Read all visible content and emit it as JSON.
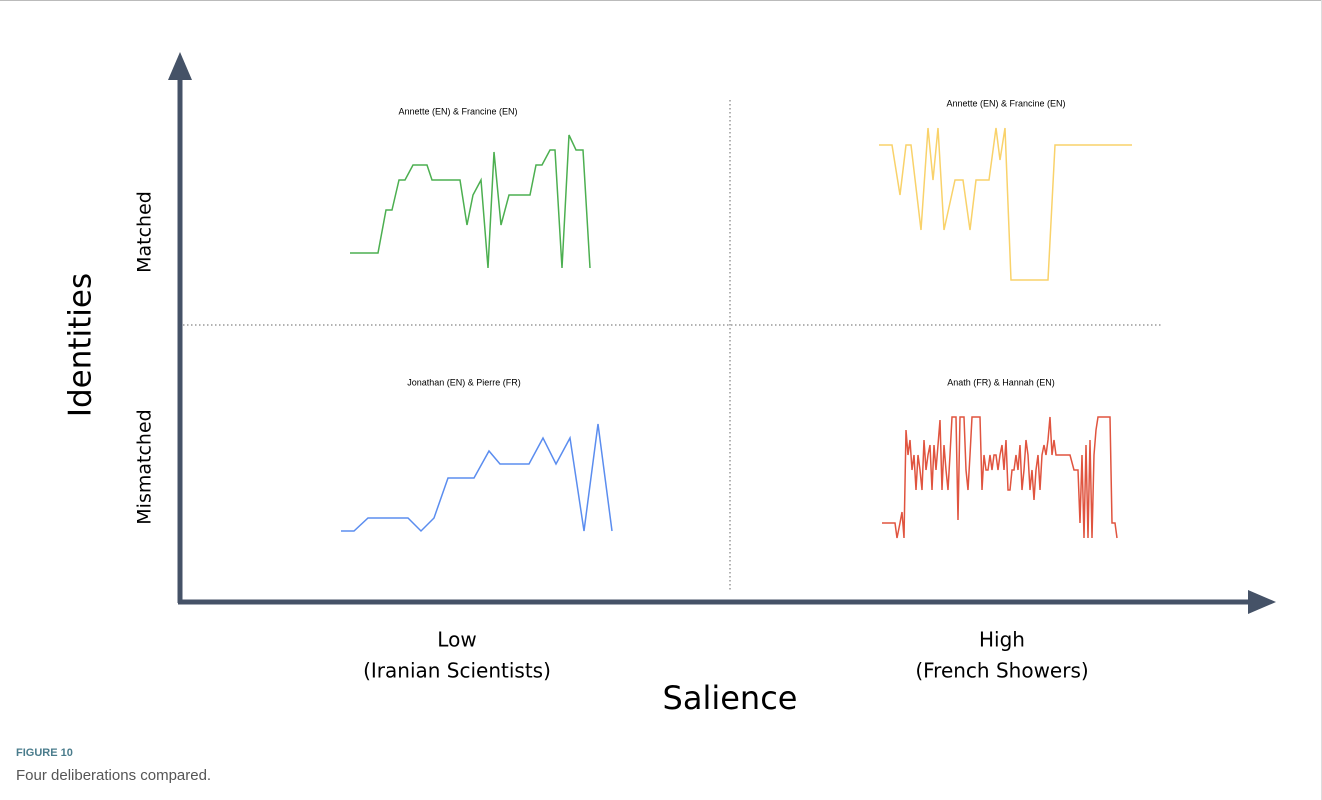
{
  "figure": {
    "label": "FIGURE 10",
    "caption": "Four deliberations compared."
  },
  "axes": {
    "y_title": "Identities",
    "x_title": "Salience",
    "y_categories": [
      "Matched",
      "Mismatched"
    ],
    "x_categories": [
      [
        "Low",
        "(Iranian Scientists)"
      ],
      [
        "High",
        "(French Showers)"
      ]
    ]
  },
  "chart_data": [
    {
      "type": "line",
      "title": "Annette (EN) & Francine (EN)",
      "color": "#4caf50",
      "xlim": [
        0,
        240
      ],
      "ylim": [
        0,
        133
      ],
      "x": [
        0,
        28,
        36,
        42,
        49,
        55,
        63,
        77,
        82,
        110,
        117,
        123,
        131,
        138,
        144,
        151,
        159,
        180,
        186,
        192,
        200,
        205,
        212,
        219,
        226,
        233,
        240
      ],
      "values": [
        15,
        15,
        58,
        58,
        88,
        88,
        103,
        103,
        88,
        88,
        43,
        73,
        88,
        0,
        116,
        43,
        73,
        73,
        103,
        103,
        118,
        118,
        0,
        133,
        118,
        118,
        0
      ]
    },
    {
      "type": "line",
      "title": "Annette (EN) & Francine (EN)",
      "color": "#f9d26a",
      "xlim": [
        0,
        253
      ],
      "ylim": [
        0,
        152
      ],
      "x": [
        0,
        13,
        21,
        27,
        32,
        42,
        49,
        54,
        59,
        65,
        76,
        84,
        91,
        97,
        110,
        117,
        121,
        126,
        132,
        169,
        176,
        253
      ],
      "values": [
        135,
        135,
        85,
        135,
        135,
        50,
        152,
        100,
        152,
        50,
        100,
        100,
        50,
        100,
        100,
        152,
        120,
        152,
        0,
        0,
        135,
        135
      ]
    },
    {
      "type": "line",
      "title": "Jonathan (EN) & Pierre (FR)",
      "color": "#5b8def",
      "xlim": [
        0,
        271
      ],
      "ylim": [
        0,
        107
      ],
      "x": [
        0,
        13,
        27,
        67,
        80,
        93,
        107,
        133,
        148,
        159,
        188,
        202,
        215,
        229,
        243,
        257,
        271
      ],
      "values": [
        0,
        0,
        13,
        13,
        0,
        13,
        53,
        53,
        80,
        67,
        67,
        93,
        67,
        93,
        0,
        107,
        0
      ]
    },
    {
      "type": "line",
      "title": "Anath (FR) & Hannah (EN)",
      "color": "#e0543f",
      "xlim": [
        0,
        235
      ],
      "ylim": [
        0,
        121
      ],
      "x": [
        0,
        13,
        15,
        18,
        20,
        22,
        24,
        26,
        28,
        30,
        32,
        34,
        36,
        38,
        40,
        42,
        44,
        46,
        48,
        50,
        52,
        54,
        56,
        58,
        60,
        62,
        64,
        66,
        68,
        70,
        74,
        76,
        78,
        82,
        84,
        86,
        88,
        90,
        98,
        100,
        102,
        104,
        106,
        108,
        110,
        112,
        114,
        116,
        118,
        120,
        122,
        124,
        126,
        128,
        130,
        132,
        134,
        136,
        138,
        140,
        142,
        144,
        146,
        148,
        150,
        152,
        154,
        156,
        158,
        160,
        162,
        164,
        166,
        168,
        170,
        172,
        174,
        188,
        192,
        196,
        198,
        200,
        202,
        204,
        206,
        208,
        210,
        212,
        214,
        216,
        228,
        230,
        233,
        235
      ],
      "values": [
        15,
        15,
        0,
        15,
        26,
        0,
        108,
        83,
        98,
        68,
        83,
        48,
        83,
        68,
        48,
        98,
        68,
        83,
        93,
        48,
        93,
        68,
        93,
        118,
        48,
        93,
        68,
        48,
        83,
        121,
        121,
        18,
        121,
        121,
        68,
        48,
        83,
        121,
        121,
        48,
        83,
        68,
        68,
        83,
        68,
        83,
        83,
        68,
        83,
        93,
        68,
        98,
        48,
        48,
        68,
        68,
        83,
        68,
        93,
        48,
        68,
        98,
        83,
        48,
        68,
        38,
        68,
        83,
        48,
        83,
        93,
        83,
        98,
        121,
        83,
        98,
        83,
        83,
        68,
        68,
        15,
        83,
        0,
        93,
        0,
        98,
        0,
        83,
        108,
        121,
        121,
        15,
        15,
        0
      ]
    }
  ]
}
